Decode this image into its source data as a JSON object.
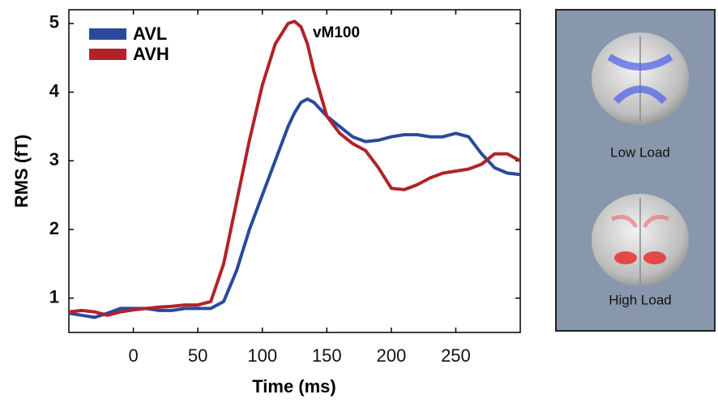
{
  "chart_data": {
    "type": "line",
    "annotation": "vM100",
    "x_label": "Time (ms)",
    "y_label": "RMS (fT)",
    "x": [
      -50,
      -40,
      -30,
      -20,
      -10,
      0,
      10,
      20,
      30,
      40,
      50,
      60,
      70,
      80,
      90,
      100,
      110,
      120,
      125,
      130,
      135,
      140,
      150,
      160,
      170,
      180,
      190,
      200,
      210,
      220,
      230,
      240,
      250,
      260,
      270,
      280,
      290,
      300
    ],
    "series": [
      {
        "name": "AVL",
        "color": "#2a4a9c",
        "values": [
          0.78,
          0.75,
          0.72,
          0.78,
          0.85,
          0.85,
          0.85,
          0.82,
          0.82,
          0.85,
          0.85,
          0.85,
          0.95,
          1.4,
          2.0,
          2.5,
          3.0,
          3.5,
          3.7,
          3.85,
          3.9,
          3.85,
          3.65,
          3.5,
          3.35,
          3.28,
          3.3,
          3.35,
          3.38,
          3.38,
          3.35,
          3.35,
          3.4,
          3.35,
          3.1,
          2.9,
          2.82,
          2.8
        ]
      },
      {
        "name": "AVH",
        "color": "#b0232a",
        "values": [
          0.8,
          0.82,
          0.8,
          0.75,
          0.8,
          0.83,
          0.85,
          0.87,
          0.88,
          0.9,
          0.9,
          0.95,
          1.5,
          2.4,
          3.3,
          4.1,
          4.7,
          5.0,
          5.03,
          4.95,
          4.7,
          4.3,
          3.65,
          3.4,
          3.25,
          3.15,
          2.9,
          2.6,
          2.58,
          2.65,
          2.75,
          2.82,
          2.85,
          2.88,
          2.95,
          3.1,
          3.1,
          3.0
        ]
      }
    ],
    "xlim": [
      -50,
      300
    ],
    "xticks": [
      0,
      50,
      100,
      150,
      200,
      250
    ],
    "ylim": [
      0.5,
      5.2
    ],
    "yticks": [
      1,
      2,
      3,
      4,
      5
    ],
    "legend": "upper left"
  },
  "panel": {
    "labels": [
      "Low Load",
      "High Load"
    ]
  }
}
